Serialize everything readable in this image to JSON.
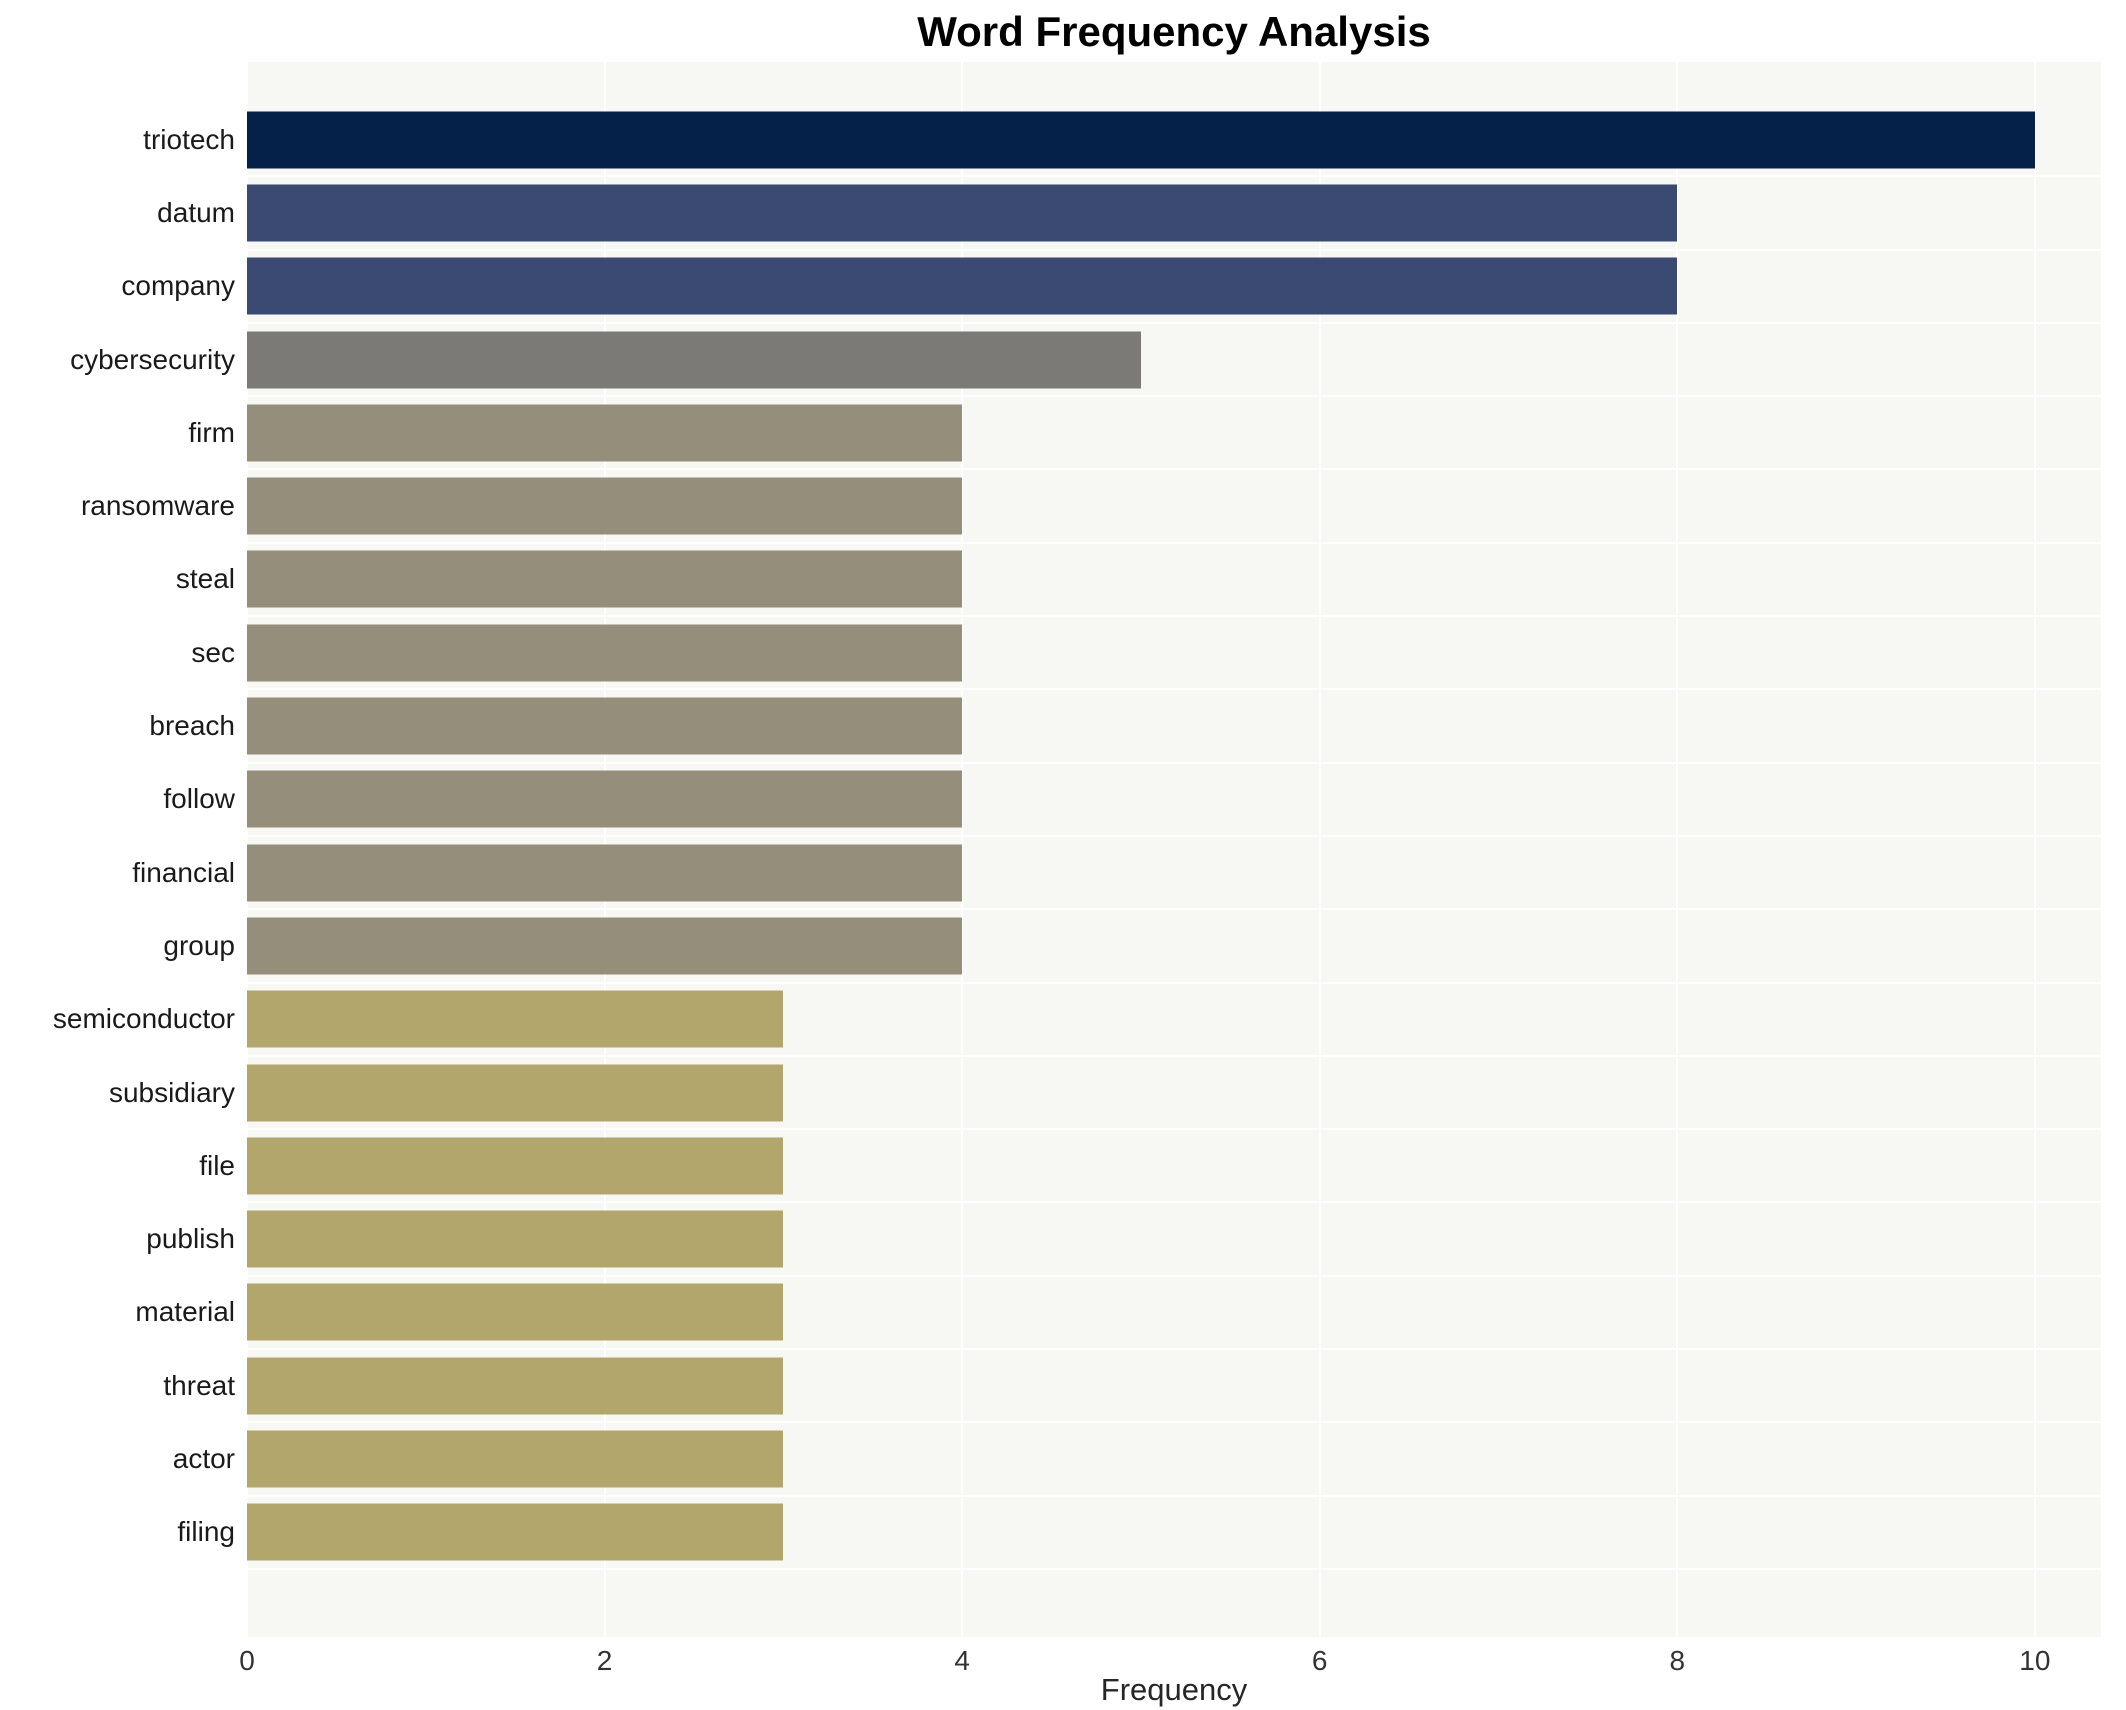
{
  "title": "Word Frequency Analysis",
  "chart_data": {
    "type": "bar",
    "orientation": "horizontal",
    "title": "Word Frequency Analysis",
    "xlabel": "Frequency",
    "categories": [
      "triotech",
      "datum",
      "company",
      "cybersecurity",
      "firm",
      "ransomware",
      "steal",
      "sec",
      "breach",
      "follow",
      "financial",
      "group",
      "semiconductor",
      "subsidiary",
      "file",
      "publish",
      "material",
      "threat",
      "actor",
      "filing"
    ],
    "values": [
      10,
      8,
      8,
      5,
      4,
      4,
      4,
      4,
      4,
      4,
      4,
      4,
      3,
      3,
      3,
      3,
      3,
      3,
      3,
      3
    ],
    "bar_colors": [
      "#052149",
      "#3a4a73",
      "#3a4a73",
      "#7c7a76",
      "#948e7a",
      "#948e7a",
      "#948e7a",
      "#948e7a",
      "#948e7a",
      "#948e7a",
      "#948e7a",
      "#948e7a",
      "#b3a66c",
      "#b3a66c",
      "#b3a66c",
      "#b3a66c",
      "#b3a66c",
      "#b3a66c",
      "#b3a66c",
      "#b3a66c"
    ],
    "xticks": [
      0,
      2,
      4,
      6,
      8,
      10
    ],
    "xlim": [
      0,
      10.37
    ],
    "grid": true,
    "legend_position": "none",
    "plot_bg": "#f7f7f4",
    "grid_color": "#ffffff"
  }
}
